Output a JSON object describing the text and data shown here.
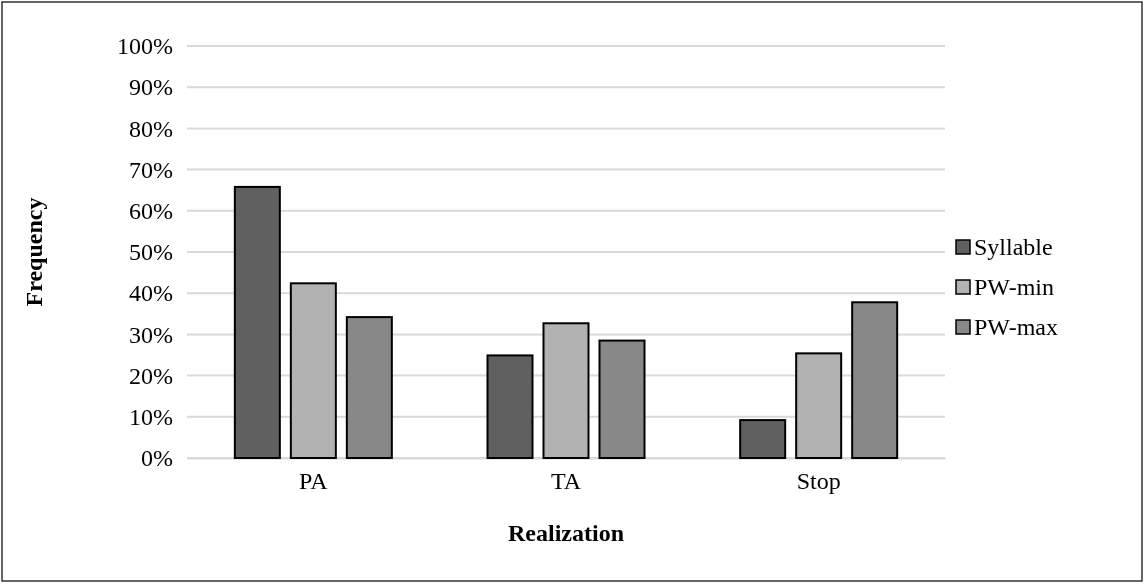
{
  "chart_data": {
    "type": "bar",
    "xlabel": "Realization",
    "ylabel": "Frequency",
    "categories": [
      "PA",
      "TA",
      "Stop"
    ],
    "series": [
      {
        "name": "Syllable",
        "color": "#606060",
        "values": [
          65.8,
          24.9,
          9.2
        ]
      },
      {
        "name": "PW-min",
        "color": "#b2b2b2",
        "values": [
          42.4,
          32.7,
          25.4
        ]
      },
      {
        "name": "PW-max",
        "color": "#888888",
        "values": [
          34.2,
          28.5,
          37.8
        ]
      }
    ],
    "ylim": [
      0,
      100
    ],
    "yticks": [
      {
        "value": 0,
        "label": "0%"
      },
      {
        "value": 10,
        "label": "10%"
      },
      {
        "value": 20,
        "label": "20%"
      },
      {
        "value": 30,
        "label": "30%"
      },
      {
        "value": 40,
        "label": "40%"
      },
      {
        "value": 50,
        "label": "50%"
      },
      {
        "value": 60,
        "label": "60%"
      },
      {
        "value": 70,
        "label": "70%"
      },
      {
        "value": 80,
        "label": "80%"
      },
      {
        "value": 90,
        "label": "90%"
      },
      {
        "value": 100,
        "label": "100%"
      }
    ],
    "grid": "y",
    "legend": "right"
  }
}
